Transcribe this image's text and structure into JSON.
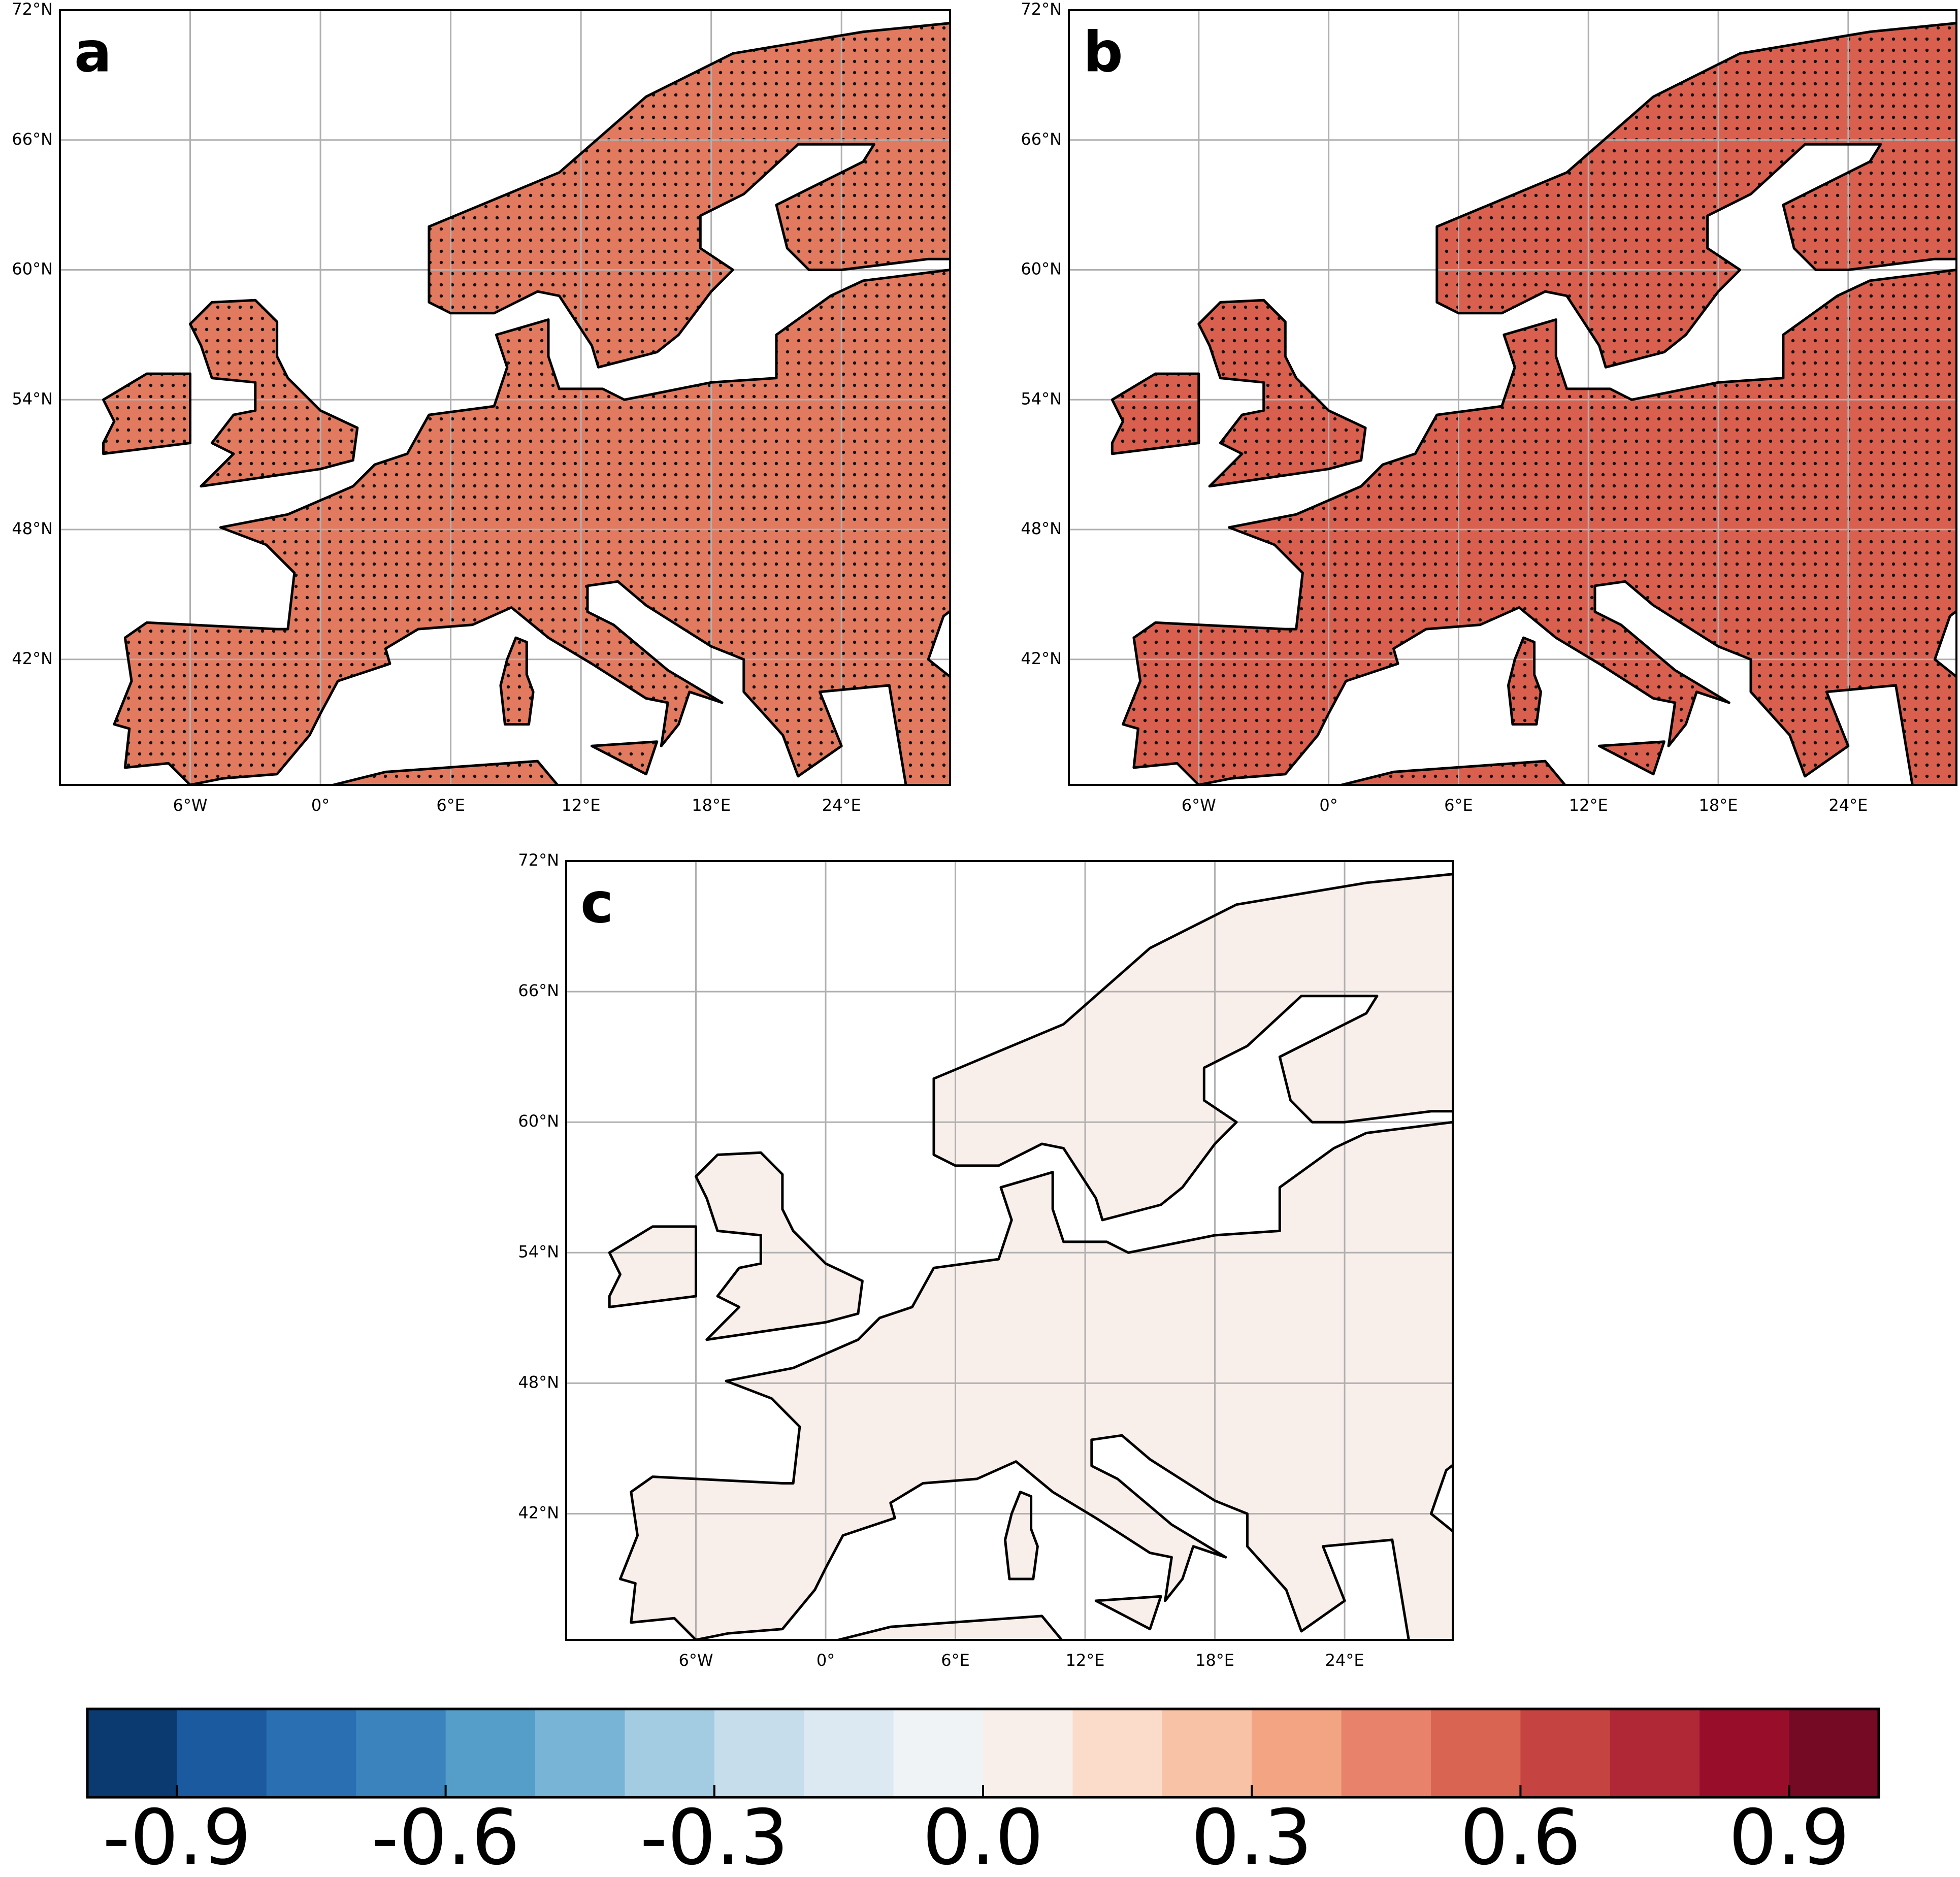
{
  "map": {
    "xlim": [
      -12,
      29
    ],
    "ylim": [
      36.2,
      72
    ],
    "xticks": [
      {
        "value": -6,
        "label": "6°W"
      },
      {
        "value": 0,
        "label": "0°"
      },
      {
        "value": 6,
        "label": "6°E"
      },
      {
        "value": 12,
        "label": "12°E"
      },
      {
        "value": 18,
        "label": "18°E"
      },
      {
        "value": 24,
        "label": "24°E"
      }
    ],
    "yticks": [
      {
        "value": 42,
        "label": "42°N"
      },
      {
        "value": 48,
        "label": "48°N"
      },
      {
        "value": 54,
        "label": "54°N"
      },
      {
        "value": 60,
        "label": "60°N"
      },
      {
        "value": 66,
        "label": "66°N"
      },
      {
        "value": 72,
        "label": "72°N"
      }
    ],
    "grid": true
  },
  "panels": [
    {
      "label": "a",
      "fill": "#e27a60",
      "stippled": true
    },
    {
      "label": "b",
      "fill": "#d9604f",
      "stippled": true
    },
    {
      "label": "c",
      "fill": "#f8eeea",
      "stippled": false
    }
  ],
  "colorbar": {
    "lim": [
      -1,
      1
    ],
    "colors": [
      "#0b3a71",
      "#1b5a9e",
      "#2b6fb3",
      "#3a83bd",
      "#549ec9",
      "#78b4d6",
      "#a3cbe2",
      "#c6ddec",
      "#dde9f2",
      "#eff3f6",
      "#f8efea",
      "#fbdccb",
      "#f8c2a6",
      "#f3a482",
      "#e8826a",
      "#d96452",
      "#c54442",
      "#b02735",
      "#980e2a",
      "#750a24"
    ],
    "ticks": [
      -0.9,
      -0.6,
      -0.3,
      {
        "value": 0,
        "label": "0.0"
      },
      0.3,
      0.6,
      0.9
    ]
  }
}
